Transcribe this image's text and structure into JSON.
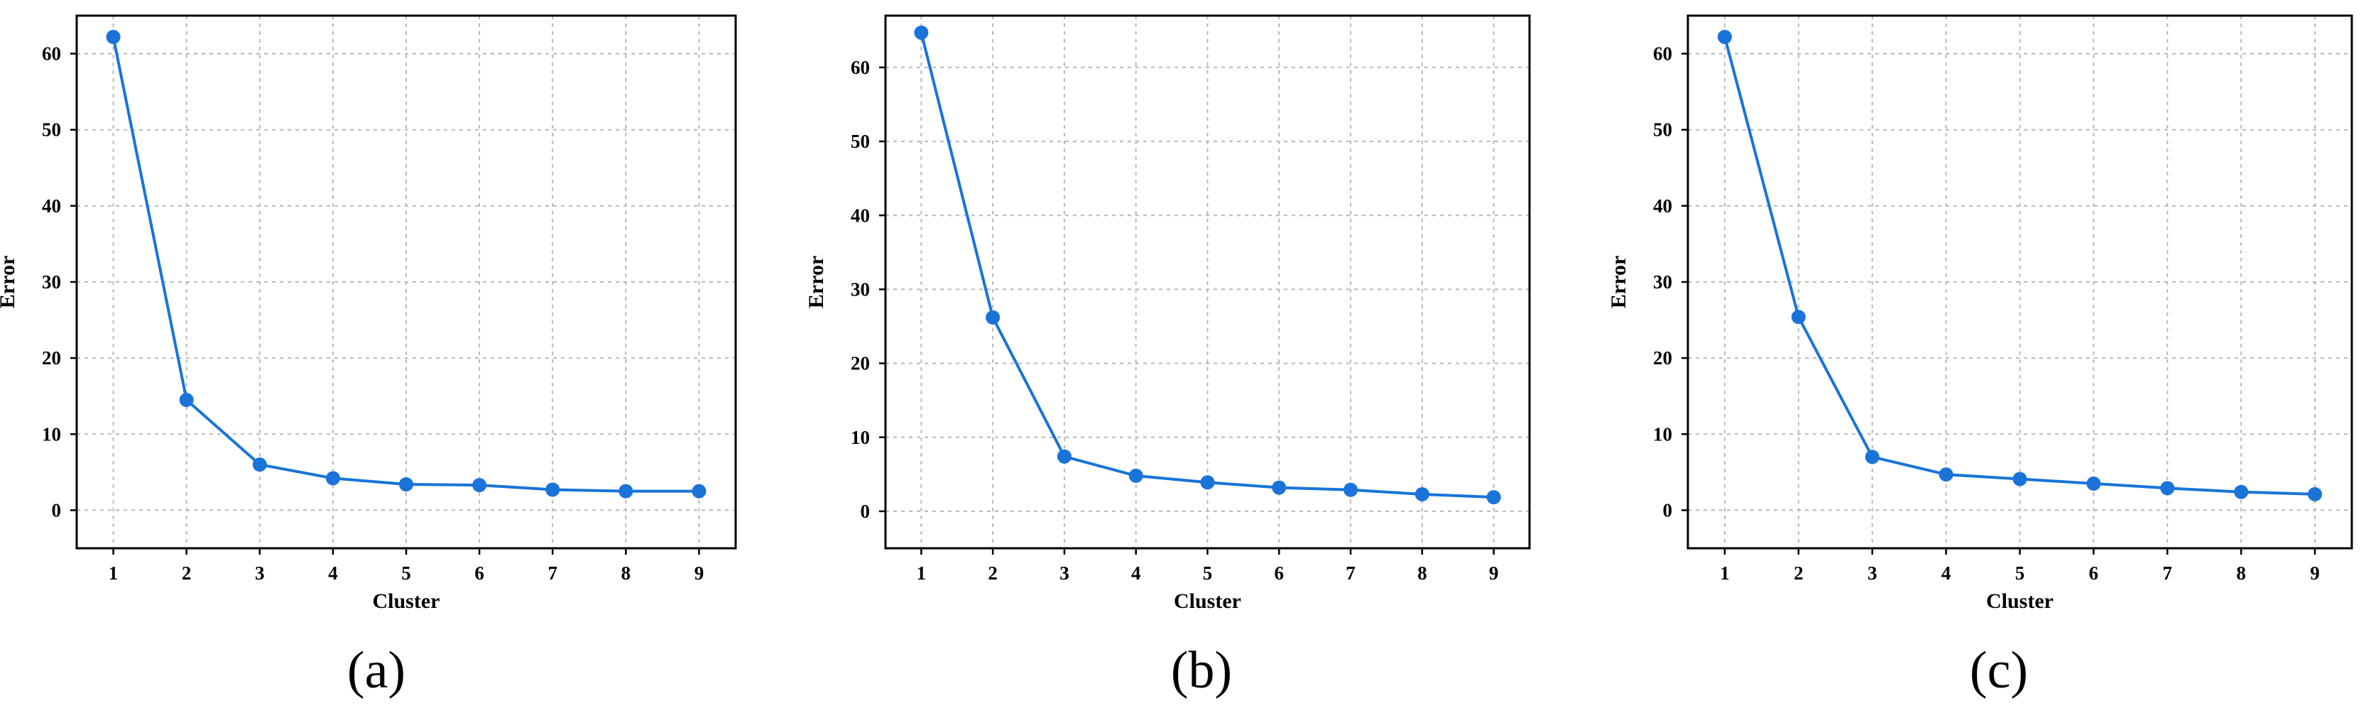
{
  "chart_data": [
    {
      "type": "line",
      "panel_label": "(a)",
      "xlabel": "Cluster",
      "ylabel": "Error",
      "x": [
        1,
        2,
        3,
        4,
        5,
        6,
        7,
        8,
        9
      ],
      "y": [
        62.2,
        14.5,
        6.0,
        4.2,
        3.4,
        3.3,
        2.7,
        2.5,
        2.5
      ],
      "xlim": [
        0.5,
        9.5
      ],
      "ylim": [
        -5,
        65
      ],
      "xticks": [
        1,
        2,
        3,
        4,
        5,
        6,
        7,
        8,
        9
      ],
      "yticks": [
        0,
        10,
        20,
        30,
        40,
        50,
        60
      ],
      "grid": true,
      "line_color": "#1874d8",
      "marker_color": "#1a73d9"
    },
    {
      "type": "line",
      "panel_label": "(b)",
      "xlabel": "Cluster",
      "ylabel": "Error",
      "x": [
        1,
        2,
        3,
        4,
        5,
        6,
        7,
        8,
        9
      ],
      "y": [
        64.7,
        26.2,
        7.4,
        4.8,
        3.9,
        3.2,
        2.9,
        2.3,
        1.9
      ],
      "xlim": [
        0.5,
        9.5
      ],
      "ylim": [
        -5,
        67
      ],
      "xticks": [
        1,
        2,
        3,
        4,
        5,
        6,
        7,
        8,
        9
      ],
      "yticks": [
        0,
        10,
        20,
        30,
        40,
        50,
        60
      ],
      "grid": true,
      "line_color": "#1874d8",
      "marker_color": "#1a73d9"
    },
    {
      "type": "line",
      "panel_label": "(c)",
      "xlabel": "Cluster",
      "ylabel": "Error",
      "x": [
        1,
        2,
        3,
        4,
        5,
        6,
        7,
        8,
        9
      ],
      "y": [
        62.2,
        25.4,
        7.0,
        4.7,
        4.1,
        3.5,
        2.9,
        2.4,
        2.1
      ],
      "xlim": [
        0.5,
        9.5
      ],
      "ylim": [
        -5,
        65
      ],
      "xticks": [
        1,
        2,
        3,
        4,
        5,
        6,
        7,
        8,
        9
      ],
      "yticks": [
        0,
        10,
        20,
        30,
        40,
        50,
        60
      ],
      "grid": true,
      "line_color": "#1874d8",
      "marker_color": "#1a73d9"
    }
  ]
}
